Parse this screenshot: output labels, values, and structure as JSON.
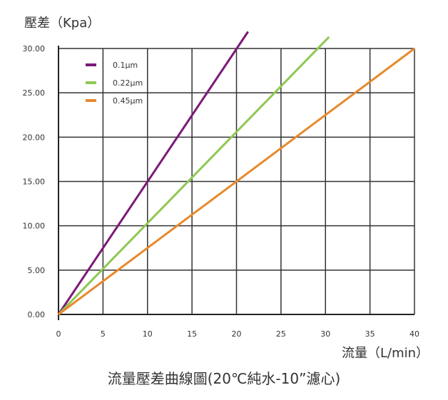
{
  "chart_data": {
    "type": "line",
    "ylabel": "壓差（Kpa）",
    "xlabel": "流量（L/min）",
    "caption": "流量壓差曲線圖(20℃純水-10”濾心)",
    "xlim": [
      0,
      40
    ],
    "ylim": [
      0,
      30
    ],
    "x_ticks": [
      "0",
      "5",
      "10",
      "15",
      "20",
      "25",
      "30",
      "35",
      "40"
    ],
    "y_ticks": [
      "0.00",
      "5.00",
      "10.00",
      "15.00",
      "20.00",
      "25.00",
      "30.00"
    ],
    "grid": true,
    "legend_position": "top-left",
    "series": [
      {
        "name": "0.1μm",
        "color": "#7b1a78",
        "points": [
          [
            0,
            0
          ],
          [
            21.3,
            31.9
          ]
        ]
      },
      {
        "name": "0.22μm",
        "color": "#8ec850",
        "points": [
          [
            0,
            0
          ],
          [
            30.4,
            31.3
          ]
        ]
      },
      {
        "name": "0.45μm",
        "color": "#e8892c",
        "points": [
          [
            0,
            0
          ],
          [
            40,
            30
          ]
        ]
      }
    ]
  }
}
